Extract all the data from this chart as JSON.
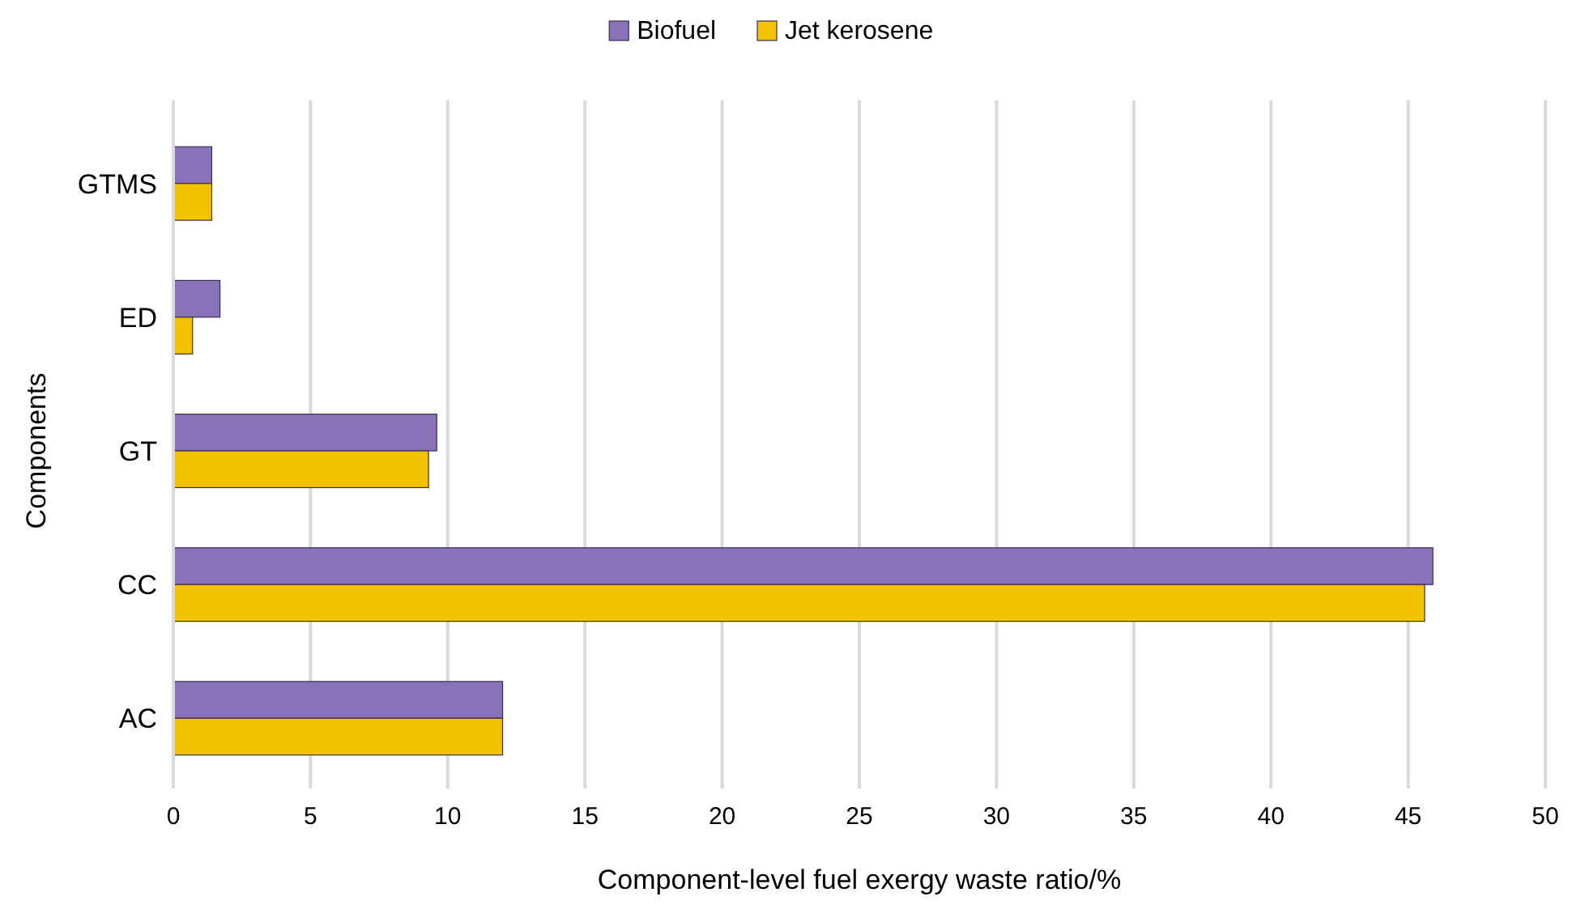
{
  "chart_data": {
    "type": "bar",
    "orientation": "horizontal",
    "xlabel": "Component-level fuel exergy waste ratio/%",
    "ylabel": "Components",
    "categories": [
      "GTMS",
      "ED",
      "GT",
      "CC",
      "AC"
    ],
    "series": [
      {
        "name": "Biofuel",
        "color": "#8a72b8",
        "values": [
          1.4,
          1.7,
          9.6,
          45.9,
          12.0
        ]
      },
      {
        "name": "Jet kerosene",
        "color": "#f2c200",
        "values": [
          1.4,
          0.7,
          9.3,
          45.6,
          12.0
        ]
      }
    ],
    "xlim": [
      0,
      50
    ],
    "xticks": [
      0,
      5,
      10,
      15,
      20,
      25,
      30,
      35,
      40,
      45,
      50
    ],
    "grid": "x",
    "legend": "top"
  }
}
